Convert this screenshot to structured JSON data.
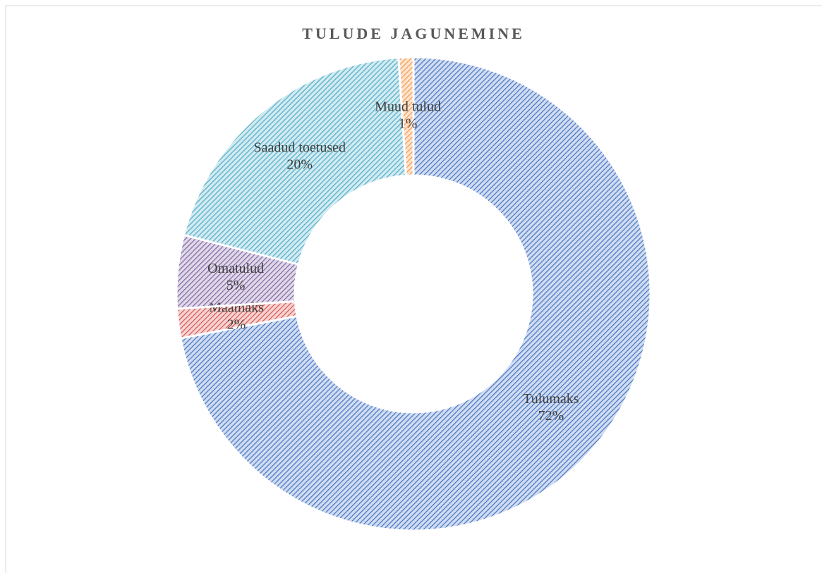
{
  "chart_data": {
    "type": "donut",
    "title": "TULUDE JAGUNEMINE",
    "categories": [
      "Tulumaks",
      "Maamaks",
      "Omatulud",
      "Saadud toetused",
      "Muud tulud"
    ],
    "values": [
      72,
      2,
      5,
      20,
      1
    ],
    "value_labels": [
      "72%",
      "2%",
      "5%",
      "20%",
      "1%"
    ],
    "colors": [
      "#4472c4",
      "#d9534f",
      "#8064a2",
      "#4bacc6",
      "#f79646"
    ]
  }
}
